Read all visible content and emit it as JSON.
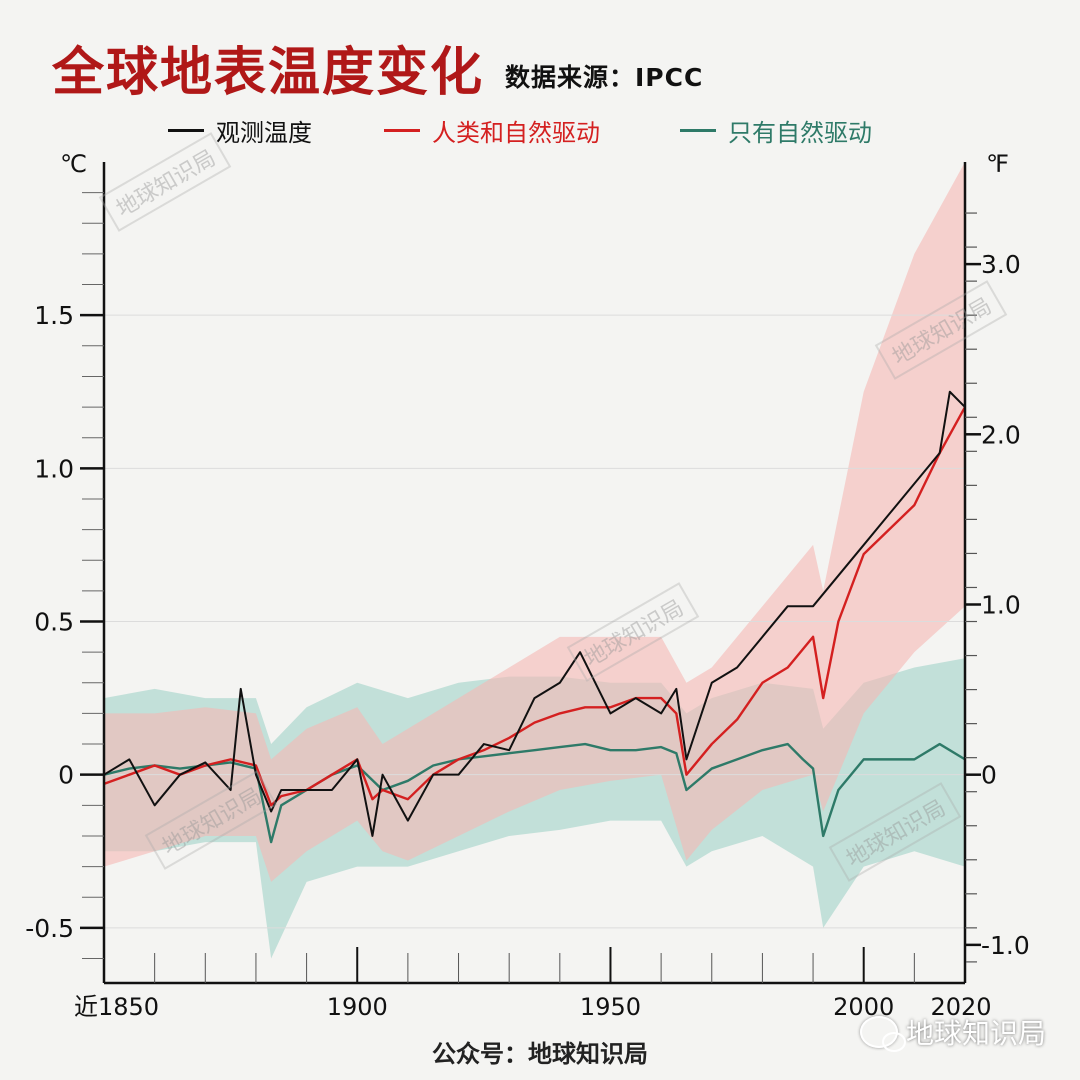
{
  "header": {
    "title": "全球地表温度变化",
    "source": "数据来源：IPCC"
  },
  "footer": {
    "account": "公众号：地球知识局",
    "brand": "地球知识局",
    "watermark": "地球知识局"
  },
  "colors": {
    "observed": "#111111",
    "human_natural": "#d42020",
    "natural_only": "#2e7a68",
    "human_band": "#f5b8b4",
    "natural_band": "#a8d6cb"
  },
  "chart_data": {
    "type": "line",
    "title": "全球地表温度变化",
    "subtitle": "数据来源：IPCC",
    "left_axis_unit": "℃",
    "right_axis_unit": "℉",
    "x_ticks": [
      1900,
      1950,
      2000,
      2020
    ],
    "x_tick_labels": [
      "1900",
      "1950",
      "2000",
      "2020"
    ],
    "x_start_label": "近1850",
    "xlim": [
      1850,
      2020
    ],
    "ylim": [
      -0.68,
      2.0
    ],
    "y_ticks": [
      -0.5,
      0,
      0.5,
      1.0,
      1.5
    ],
    "y_tick_labels": [
      "-0.5",
      "0",
      "0.5",
      "1.0",
      "1.5"
    ],
    "y_right_ticks": [
      -1.0,
      0,
      1.0,
      2.0,
      3.0
    ],
    "y_right_tick_labels": [
      "-1.0",
      "0",
      "1.0",
      "2.0",
      "3.0"
    ],
    "legend_position": "top",
    "series": [
      {
        "name": "观测温度",
        "x": [
          1850,
          1855,
          1860,
          1865,
          1870,
          1875,
          1877,
          1880,
          1883,
          1885,
          1890,
          1895,
          1900,
          1903,
          1905,
          1910,
          1915,
          1920,
          1925,
          1930,
          1935,
          1940,
          1944,
          1950,
          1955,
          1960,
          1963,
          1965,
          1970,
          1975,
          1980,
          1985,
          1990,
          1995,
          2000,
          2005,
          2010,
          2015,
          2017,
          2020
        ],
        "values": [
          0.0,
          0.05,
          -0.1,
          0.0,
          0.04,
          -0.05,
          0.28,
          0.0,
          -0.12,
          -0.05,
          -0.05,
          -0.05,
          0.05,
          -0.2,
          0.0,
          -0.15,
          0.0,
          0.0,
          0.1,
          0.08,
          0.25,
          0.3,
          0.4,
          0.2,
          0.25,
          0.2,
          0.28,
          0.05,
          0.3,
          0.35,
          0.45,
          0.55,
          0.55,
          0.65,
          0.75,
          0.85,
          0.95,
          1.05,
          1.25,
          1.2
        ]
      },
      {
        "name": "人类和自然驱动",
        "x": [
          1850,
          1855,
          1860,
          1865,
          1870,
          1875,
          1880,
          1883,
          1885,
          1890,
          1895,
          1900,
          1903,
          1905,
          1910,
          1915,
          1920,
          1925,
          1930,
          1935,
          1940,
          1945,
          1950,
          1955,
          1960,
          1963,
          1965,
          1970,
          1975,
          1980,
          1985,
          1990,
          1992,
          1995,
          2000,
          2005,
          2010,
          2015,
          2020
        ],
        "values": [
          -0.03,
          0.0,
          0.03,
          0.0,
          0.03,
          0.05,
          0.03,
          -0.1,
          -0.07,
          -0.05,
          0.0,
          0.05,
          -0.08,
          -0.05,
          -0.08,
          0.0,
          0.05,
          0.08,
          0.12,
          0.17,
          0.2,
          0.22,
          0.22,
          0.25,
          0.25,
          0.2,
          0.0,
          0.1,
          0.18,
          0.3,
          0.35,
          0.45,
          0.25,
          0.5,
          0.72,
          0.8,
          0.88,
          1.05,
          1.2
        ]
      },
      {
        "name": "只有自然驱动",
        "x": [
          1850,
          1855,
          1860,
          1865,
          1870,
          1875,
          1880,
          1883,
          1885,
          1890,
          1895,
          1900,
          1905,
          1910,
          1915,
          1920,
          1925,
          1930,
          1935,
          1940,
          1945,
          1950,
          1955,
          1960,
          1963,
          1965,
          1970,
          1975,
          1980,
          1985,
          1988,
          1990,
          1992,
          1995,
          2000,
          2005,
          2010,
          2015,
          2020
        ],
        "values": [
          0.0,
          0.02,
          0.03,
          0.02,
          0.03,
          0.04,
          0.02,
          -0.22,
          -0.1,
          -0.05,
          0.0,
          0.03,
          -0.05,
          -0.02,
          0.03,
          0.05,
          0.06,
          0.07,
          0.08,
          0.09,
          0.1,
          0.08,
          0.08,
          0.09,
          0.07,
          -0.05,
          0.02,
          0.05,
          0.08,
          0.1,
          0.05,
          0.02,
          -0.2,
          -0.05,
          0.05,
          0.05,
          0.05,
          0.1,
          0.05
        ]
      }
    ],
    "bands": [
      {
        "name": "人类和自然驱动",
        "x": [
          1850,
          1860,
          1870,
          1880,
          1883,
          1890,
          1900,
          1905,
          1910,
          1920,
          1930,
          1940,
          1950,
          1960,
          1965,
          1970,
          1980,
          1990,
          1992,
          2000,
          2010,
          2020
        ],
        "upper": [
          0.2,
          0.2,
          0.22,
          0.2,
          0.05,
          0.15,
          0.22,
          0.1,
          0.15,
          0.25,
          0.35,
          0.45,
          0.45,
          0.45,
          0.3,
          0.35,
          0.55,
          0.75,
          0.6,
          1.25,
          1.7,
          2.0
        ],
        "lower": [
          -0.3,
          -0.25,
          -0.2,
          -0.2,
          -0.35,
          -0.25,
          -0.15,
          -0.25,
          -0.28,
          -0.2,
          -0.12,
          -0.05,
          -0.02,
          0.0,
          -0.28,
          -0.18,
          -0.05,
          0.0,
          -0.12,
          0.2,
          0.4,
          0.55
        ]
      },
      {
        "name": "只有自然驱动",
        "x": [
          1850,
          1860,
          1870,
          1880,
          1883,
          1890,
          1900,
          1910,
          1920,
          1930,
          1940,
          1950,
          1960,
          1965,
          1970,
          1980,
          1990,
          1992,
          2000,
          2010,
          2020
        ],
        "upper": [
          0.25,
          0.28,
          0.25,
          0.25,
          0.1,
          0.22,
          0.3,
          0.25,
          0.3,
          0.32,
          0.32,
          0.3,
          0.3,
          0.2,
          0.25,
          0.3,
          0.28,
          0.15,
          0.3,
          0.35,
          0.38
        ],
        "lower": [
          -0.25,
          -0.25,
          -0.22,
          -0.22,
          -0.6,
          -0.35,
          -0.3,
          -0.3,
          -0.25,
          -0.2,
          -0.18,
          -0.15,
          -0.15,
          -0.3,
          -0.25,
          -0.2,
          -0.3,
          -0.5,
          -0.3,
          -0.25,
          -0.3
        ]
      }
    ]
  }
}
